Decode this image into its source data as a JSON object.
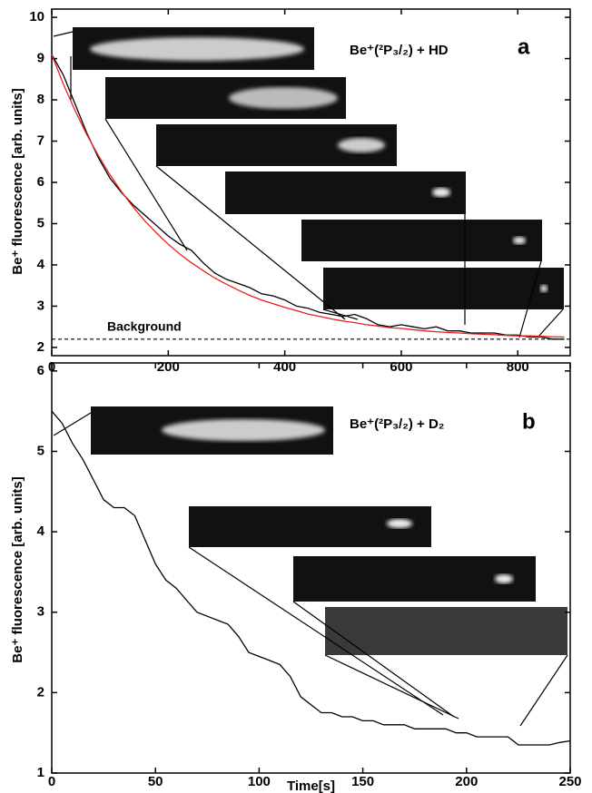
{
  "chart_data": [
    {
      "type": "line",
      "y_label": "Be⁺ fluorescence [arb. units]",
      "annotation": "Be⁺(²P₃/₂) + HD",
      "panel_label": "a",
      "reference_line": {
        "label": "Background",
        "value": 2.2
      },
      "xlim": [
        0,
        890
      ],
      "xticks": [
        0,
        200,
        400,
        600,
        800
      ],
      "ylim": [
        1.8,
        10.2
      ],
      "yticks": [
        2,
        3,
        4,
        5,
        6,
        7,
        8,
        9,
        10
      ],
      "x": [
        0,
        20,
        40,
        60,
        80,
        100,
        120,
        140,
        160,
        180,
        200,
        220,
        240,
        260,
        280,
        300,
        320,
        340,
        360,
        380,
        400,
        420,
        440,
        460,
        480,
        500,
        520,
        540,
        560,
        580,
        600,
        620,
        640,
        660,
        680,
        700,
        720,
        740,
        760,
        780,
        800,
        820,
        840,
        860,
        880
      ],
      "series": [
        {
          "color": "#000000",
          "values": [
            9.1,
            8.6,
            7.9,
            7.2,
            6.6,
            6.1,
            5.75,
            5.45,
            5.2,
            4.95,
            4.7,
            4.5,
            4.35,
            4.05,
            3.8,
            3.65,
            3.55,
            3.45,
            3.3,
            3.25,
            3.15,
            3.0,
            2.95,
            2.85,
            2.8,
            2.75,
            2.8,
            2.7,
            2.55,
            2.5,
            2.55,
            2.5,
            2.45,
            2.5,
            2.4,
            2.4,
            2.35,
            2.35,
            2.35,
            2.3,
            2.3,
            2.25,
            2.25,
            2.2,
            2.2
          ]
        },
        {
          "color": "#e8201c",
          "values": [
            9.1,
            8.38,
            7.74,
            7.16,
            6.65,
            6.18,
            5.77,
            5.4,
            5.06,
            4.77,
            4.5,
            4.26,
            4.05,
            3.86,
            3.68,
            3.53,
            3.39,
            3.26,
            3.15,
            3.06,
            2.97,
            2.89,
            2.81,
            2.75,
            2.69,
            2.64,
            2.6,
            2.55,
            2.52,
            2.48,
            2.46,
            2.43,
            2.4,
            2.38,
            2.36,
            2.35,
            2.33,
            2.32,
            2.31,
            2.29,
            2.28,
            2.28,
            2.27,
            2.26,
            2.25
          ]
        }
      ]
    },
    {
      "type": "line",
      "x_label": "Time[s]",
      "y_label": "Be⁺ fluorescence [arb. units]",
      "annotation": "Be⁺(²P₃/₂) + D₂",
      "panel_label": "b",
      "xlim": [
        0,
        250
      ],
      "xticks": [
        0,
        50,
        100,
        150,
        200,
        250
      ],
      "ylim": [
        1,
        6.1
      ],
      "yticks": [
        1,
        2,
        3,
        4,
        5,
        6
      ],
      "x": [
        0,
        5,
        10,
        15,
        20,
        25,
        30,
        35,
        40,
        45,
        50,
        55,
        60,
        65,
        70,
        75,
        80,
        85,
        90,
        95,
        100,
        105,
        110,
        115,
        120,
        125,
        130,
        135,
        140,
        145,
        150,
        155,
        160,
        165,
        170,
        175,
        180,
        185,
        190,
        195,
        200,
        205,
        210,
        215,
        220,
        225,
        230,
        235,
        240,
        245,
        250
      ],
      "series": [
        {
          "color": "#000000",
          "values": [
            5.5,
            5.35,
            5.1,
            4.9,
            4.65,
            4.4,
            4.3,
            4.3,
            4.2,
            3.9,
            3.6,
            3.4,
            3.3,
            3.15,
            3.0,
            2.95,
            2.9,
            2.85,
            2.7,
            2.5,
            2.45,
            2.4,
            2.35,
            2.2,
            1.95,
            1.85,
            1.75,
            1.75,
            1.7,
            1.7,
            1.65,
            1.65,
            1.6,
            1.6,
            1.6,
            1.55,
            1.55,
            1.55,
            1.55,
            1.5,
            1.5,
            1.45,
            1.45,
            1.45,
            1.45,
            1.35,
            1.35,
            1.35,
            1.35,
            1.38,
            1.4
          ]
        }
      ]
    }
  ]
}
